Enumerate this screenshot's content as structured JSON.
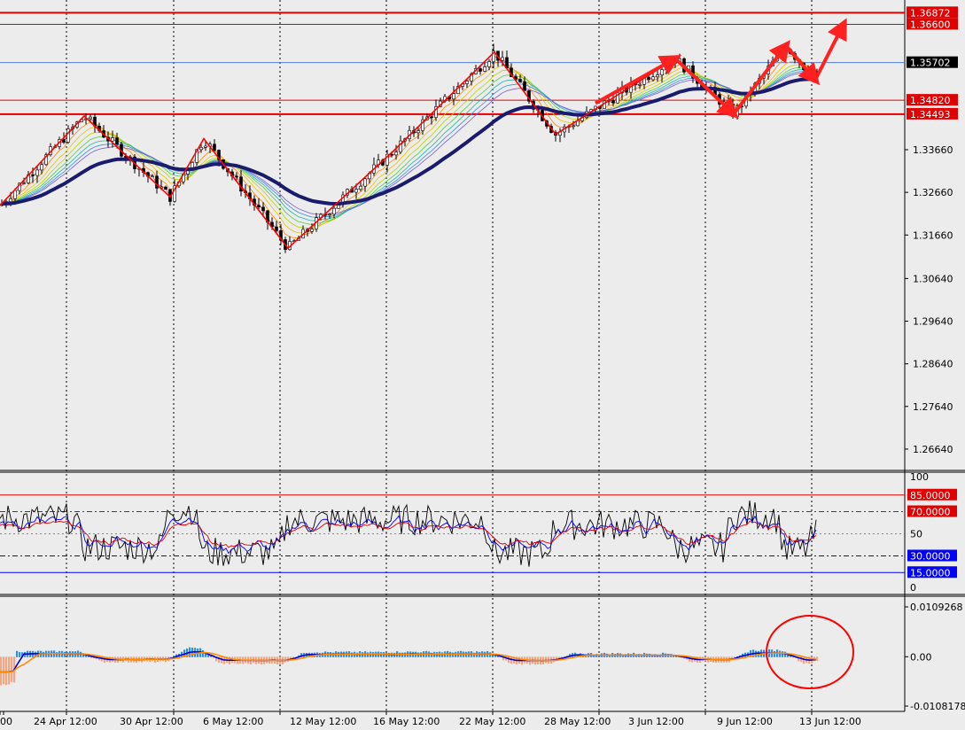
{
  "chart_data": [
    {
      "type": "candlestick",
      "pane": "price",
      "y_ticks": [
        "1.33660",
        "1.32660",
        "1.31660",
        "1.30640",
        "1.29640",
        "1.28640",
        "1.27640",
        "1.26640"
      ],
      "ylim": [
        1.2614,
        1.3717
      ],
      "price_tags": [
        {
          "label": "1.36872",
          "value": 1.36872,
          "color": "#e00000"
        },
        {
          "label": "1.36600",
          "value": 1.366,
          "color": "#e00000"
        },
        {
          "label": "1.35702",
          "value": 1.35702,
          "color": "#000000"
        },
        {
          "label": "1.34820",
          "value": 1.3482,
          "color": "#e00000"
        },
        {
          "label": "1.34493",
          "value": 1.34493,
          "color": "#e00000"
        }
      ],
      "zigzag": [
        [
          0,
          1.3235
        ],
        [
          95,
          1.3445
        ],
        [
          192,
          1.3255
        ],
        [
          230,
          1.3392
        ],
        [
          325,
          1.3135
        ],
        [
          445,
          1.3365
        ],
        [
          558,
          1.3595
        ],
        [
          627,
          1.3402
        ],
        [
          762,
          1.358
        ],
        [
          828,
          1.345
        ],
        [
          887,
          1.361
        ],
        [
          920,
          1.353
        ]
      ],
      "arrows": [
        [
          [
            672,
            1.3475
          ],
          [
            762,
            1.358
          ]
        ],
        [
          [
            762,
            1.358
          ],
          [
            828,
            1.345
          ]
        ],
        [
          [
            828,
            1.345
          ],
          [
            887,
            1.361
          ]
        ],
        [
          [
            887,
            1.361
          ],
          [
            920,
            1.353
          ]
        ],
        [
          [
            920,
            1.353
          ],
          [
            952,
            1.366
          ]
        ]
      ]
    },
    {
      "type": "line",
      "pane": "stochastic",
      "y_ticks": [
        "100",
        "50",
        "0"
      ],
      "ylim": [
        0,
        100
      ],
      "levels": [
        {
          "label": "85.0000",
          "value": 85,
          "color": "#e00000"
        },
        {
          "label": "70.0000",
          "value": 70,
          "color": "#e00000"
        },
        {
          "label": "30.0000",
          "value": 30,
          "color": "#0000ff"
        },
        {
          "label": "15.0000",
          "value": 15,
          "color": "#0000ff"
        }
      ]
    },
    {
      "type": "bar",
      "pane": "macd",
      "y_ticks": [
        "0.0109268",
        "0.00",
        "-0.0108178"
      ],
      "ylim": [
        -0.0108178,
        0.0109268
      ]
    }
  ],
  "x_labels": [
    "00",
    "24 Apr 12:00",
    "30 Apr 12:00",
    "6 May 12:00",
    "12 May 12:00",
    "16 May 12:00",
    "22 May 12:00",
    "28 May 12:00",
    "3 Jun 12:00",
    "9 Jun 12:00",
    "13 Jun 12:00"
  ],
  "colors": {
    "background": "#ececec",
    "bull": "#ffffff",
    "bear": "#000000",
    "zigzag": "#ff0000",
    "ema_slow": "#1b1b6e",
    "macd_pos": "#2f8fe0",
    "macd_neg": "#f4a582",
    "macd_line": "#0000cc",
    "signal_line": "#ff8c00"
  }
}
